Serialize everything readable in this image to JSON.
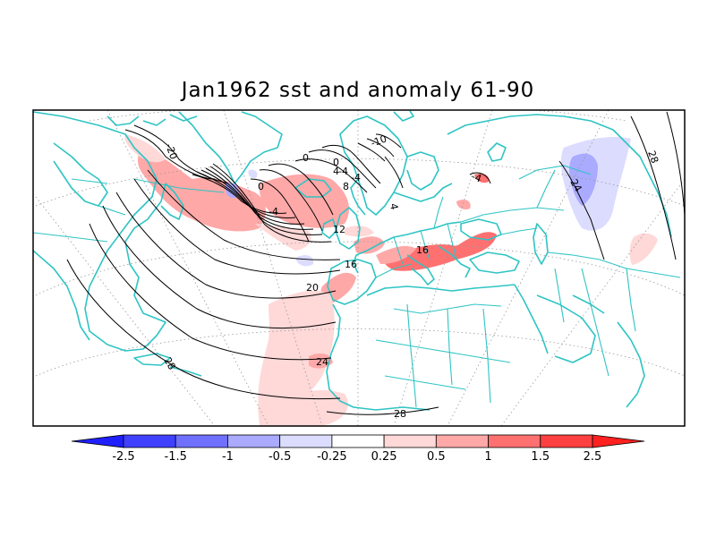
{
  "title": "Jan1962 sst and anomaly 61-90",
  "colors": {
    "coast": "#2fc4c4",
    "contour": "#000000",
    "neg_strong": "#2020ff",
    "neg_mid": "#7070ff",
    "neg_light": "#aaaaff",
    "neg_faint": "#dcdcff",
    "pos_faint": "#ffd8d8",
    "pos_light": "#ffa8a8",
    "pos_mid": "#ff7070",
    "pos_strong": "#ff2020"
  },
  "contour_labels": [
    "-20",
    "0",
    "-4",
    "0",
    "4",
    "-4",
    "8",
    "-4",
    "0",
    "12",
    "16",
    "20",
    "24",
    "28",
    "24",
    "28",
    "28",
    "16",
    "-10",
    "4",
    "-4"
  ],
  "colorbar": {
    "labels": [
      "-2.5",
      "-1.5",
      "-1",
      "-0.5",
      "-0.25",
      "0.25",
      "0.5",
      "1",
      "1.5",
      "2.5"
    ],
    "colors": [
      "#2020ff",
      "#4040ff",
      "#7070ff",
      "#aaaaff",
      "#dcdcff",
      "#ffffff",
      "#ffd8d8",
      "#ffa8a8",
      "#ff7070",
      "#ff4040",
      "#ff2020"
    ]
  }
}
